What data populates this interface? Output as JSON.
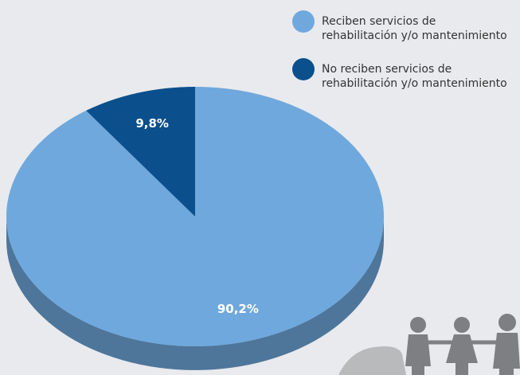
{
  "chart_data": {
    "type": "pie",
    "categories": [
      "Reciben servicios de rehabilitación y/o mantenimiento",
      "No reciben servicios de rehabilitación y/o mantenimiento"
    ],
    "values": [
      90.2,
      9.8
    ],
    "value_labels": [
      "90,2%",
      "9,8%"
    ],
    "colors": [
      "#6fa8dc",
      "#0b4f8c"
    ],
    "legend": "top-right"
  }
}
